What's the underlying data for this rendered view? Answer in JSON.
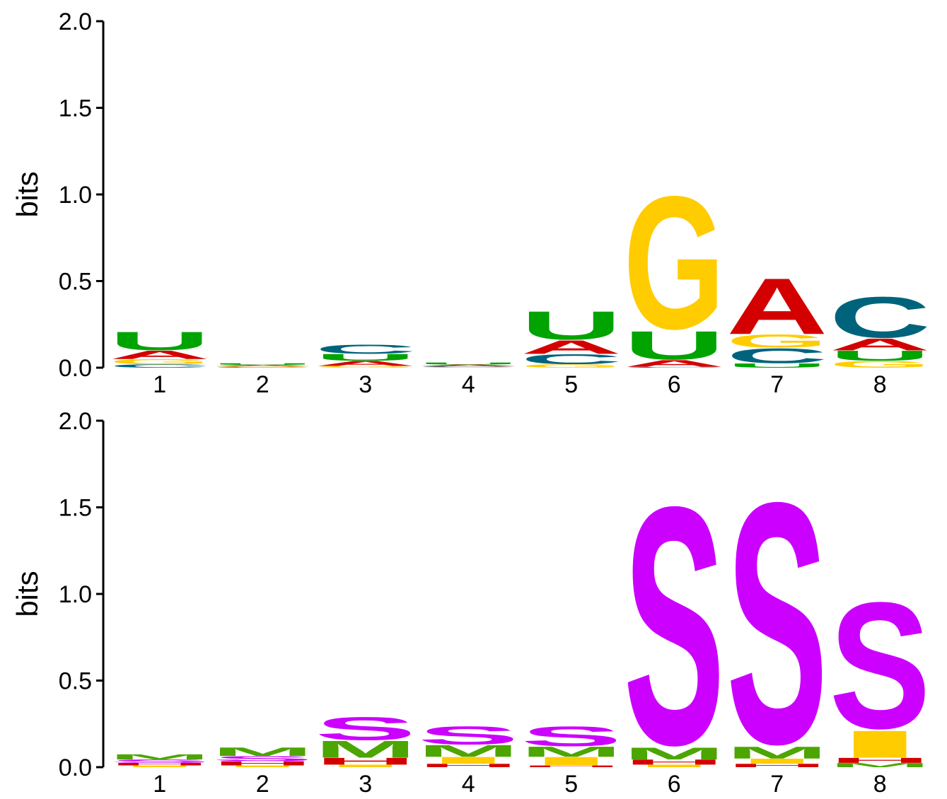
{
  "chart_data": [
    {
      "type": "sequence-logo",
      "ylabel": "bits",
      "ylim": [
        0,
        2
      ],
      "yticks": [
        "0.0",
        "0.5",
        "1.0",
        "1.5",
        "2.0"
      ],
      "positions": [
        "1",
        "2",
        "3",
        "4",
        "5",
        "6",
        "7",
        "8"
      ],
      "stacks": [
        [
          {
            "letter": "C",
            "bits": 0.02
          },
          {
            "letter": "G",
            "bits": 0.03
          },
          {
            "letter": "A",
            "bits": 0.05
          },
          {
            "letter": "U",
            "bits": 0.11
          }
        ],
        [
          {
            "letter": "C",
            "bits": 0.004
          },
          {
            "letter": "G",
            "bits": 0.004
          },
          {
            "letter": "A",
            "bits": 0.008
          },
          {
            "letter": "U",
            "bits": 0.01
          }
        ],
        [
          {
            "letter": "G",
            "bits": 0.01
          },
          {
            "letter": "A",
            "bits": 0.03
          },
          {
            "letter": "U",
            "bits": 0.04
          },
          {
            "letter": "C",
            "bits": 0.055
          }
        ],
        [
          {
            "letter": "G",
            "bits": 0.003
          },
          {
            "letter": "C",
            "bits": 0.005
          },
          {
            "letter": "A",
            "bits": 0.01
          },
          {
            "letter": "U",
            "bits": 0.012
          }
        ],
        [
          {
            "letter": "G",
            "bits": 0.02
          },
          {
            "letter": "C",
            "bits": 0.06
          },
          {
            "letter": "A",
            "bits": 0.08
          },
          {
            "letter": "U",
            "bits": 0.17
          }
        ],
        [
          {
            "letter": "C",
            "bits": 0.005
          },
          {
            "letter": "A",
            "bits": 0.04
          },
          {
            "letter": "U",
            "bits": 0.17
          },
          {
            "letter": "G",
            "bits": 0.81
          }
        ],
        [
          {
            "letter": "U",
            "bits": 0.025
          },
          {
            "letter": "C",
            "bits": 0.09
          },
          {
            "letter": "G",
            "bits": 0.08
          },
          {
            "letter": "A",
            "bits": 0.33
          }
        ],
        [
          {
            "letter": "G",
            "bits": 0.04
          },
          {
            "letter": "U",
            "bits": 0.06
          },
          {
            "letter": "A",
            "bits": 0.07
          },
          {
            "letter": "C",
            "bits": 0.25
          }
        ]
      ],
      "colors": {
        "A": "#d40000",
        "C": "#00637c",
        "G": "#ffcc00",
        "U": "#00a300"
      }
    },
    {
      "type": "sequence-logo",
      "ylabel": "bits",
      "ylim": [
        0,
        2
      ],
      "yticks": [
        "0.0",
        "0.5",
        "1.0",
        "1.5",
        "2.0"
      ],
      "positions": [
        "1",
        "2",
        "3",
        "4",
        "5",
        "6",
        "7",
        "8"
      ],
      "stacks": [
        [
          {
            "letter": "I",
            "bits": 0.01
          },
          {
            "letter": "H",
            "bits": 0.015
          },
          {
            "letter": "S",
            "bits": 0.02
          },
          {
            "letter": "M",
            "bits": 0.03
          }
        ],
        [
          {
            "letter": "I",
            "bits": 0.01
          },
          {
            "letter": "H",
            "bits": 0.025
          },
          {
            "letter": "S",
            "bits": 0.03
          },
          {
            "letter": "M",
            "bits": 0.05
          }
        ],
        [
          {
            "letter": "I",
            "bits": 0.015
          },
          {
            "letter": "H",
            "bits": 0.04
          },
          {
            "letter": "M",
            "bits": 0.1
          },
          {
            "letter": "S",
            "bits": 0.14
          }
        ],
        [
          {
            "letter": "H",
            "bits": 0.02
          },
          {
            "letter": "I",
            "bits": 0.04
          },
          {
            "letter": "M",
            "bits": 0.07
          },
          {
            "letter": "S",
            "bits": 0.11
          }
        ],
        [
          {
            "letter": "H",
            "bits": 0.01
          },
          {
            "letter": "I",
            "bits": 0.05
          },
          {
            "letter": "M",
            "bits": 0.06
          },
          {
            "letter": "S",
            "bits": 0.12
          }
        ],
        [
          {
            "letter": "I",
            "bits": 0.015
          },
          {
            "letter": "H",
            "bits": 0.03
          },
          {
            "letter": "M",
            "bits": 0.07
          },
          {
            "letter": "S",
            "bits": 1.45
          }
        ],
        [
          {
            "letter": "H",
            "bits": 0.02
          },
          {
            "letter": "I",
            "bits": 0.03
          },
          {
            "letter": "M",
            "bits": 0.07
          },
          {
            "letter": "S",
            "bits": 1.47
          }
        ],
        [
          {
            "letter": "M",
            "bits": 0.025
          },
          {
            "letter": "H",
            "bits": 0.03
          },
          {
            "letter": "I",
            "bits": 0.16
          },
          {
            "letter": "S",
            "bits": 0.77
          }
        ]
      ],
      "colors": {
        "S": "#cc00ff",
        "M": "#4ca500",
        "I": "#ffcc00",
        "H": "#d40000"
      }
    }
  ]
}
